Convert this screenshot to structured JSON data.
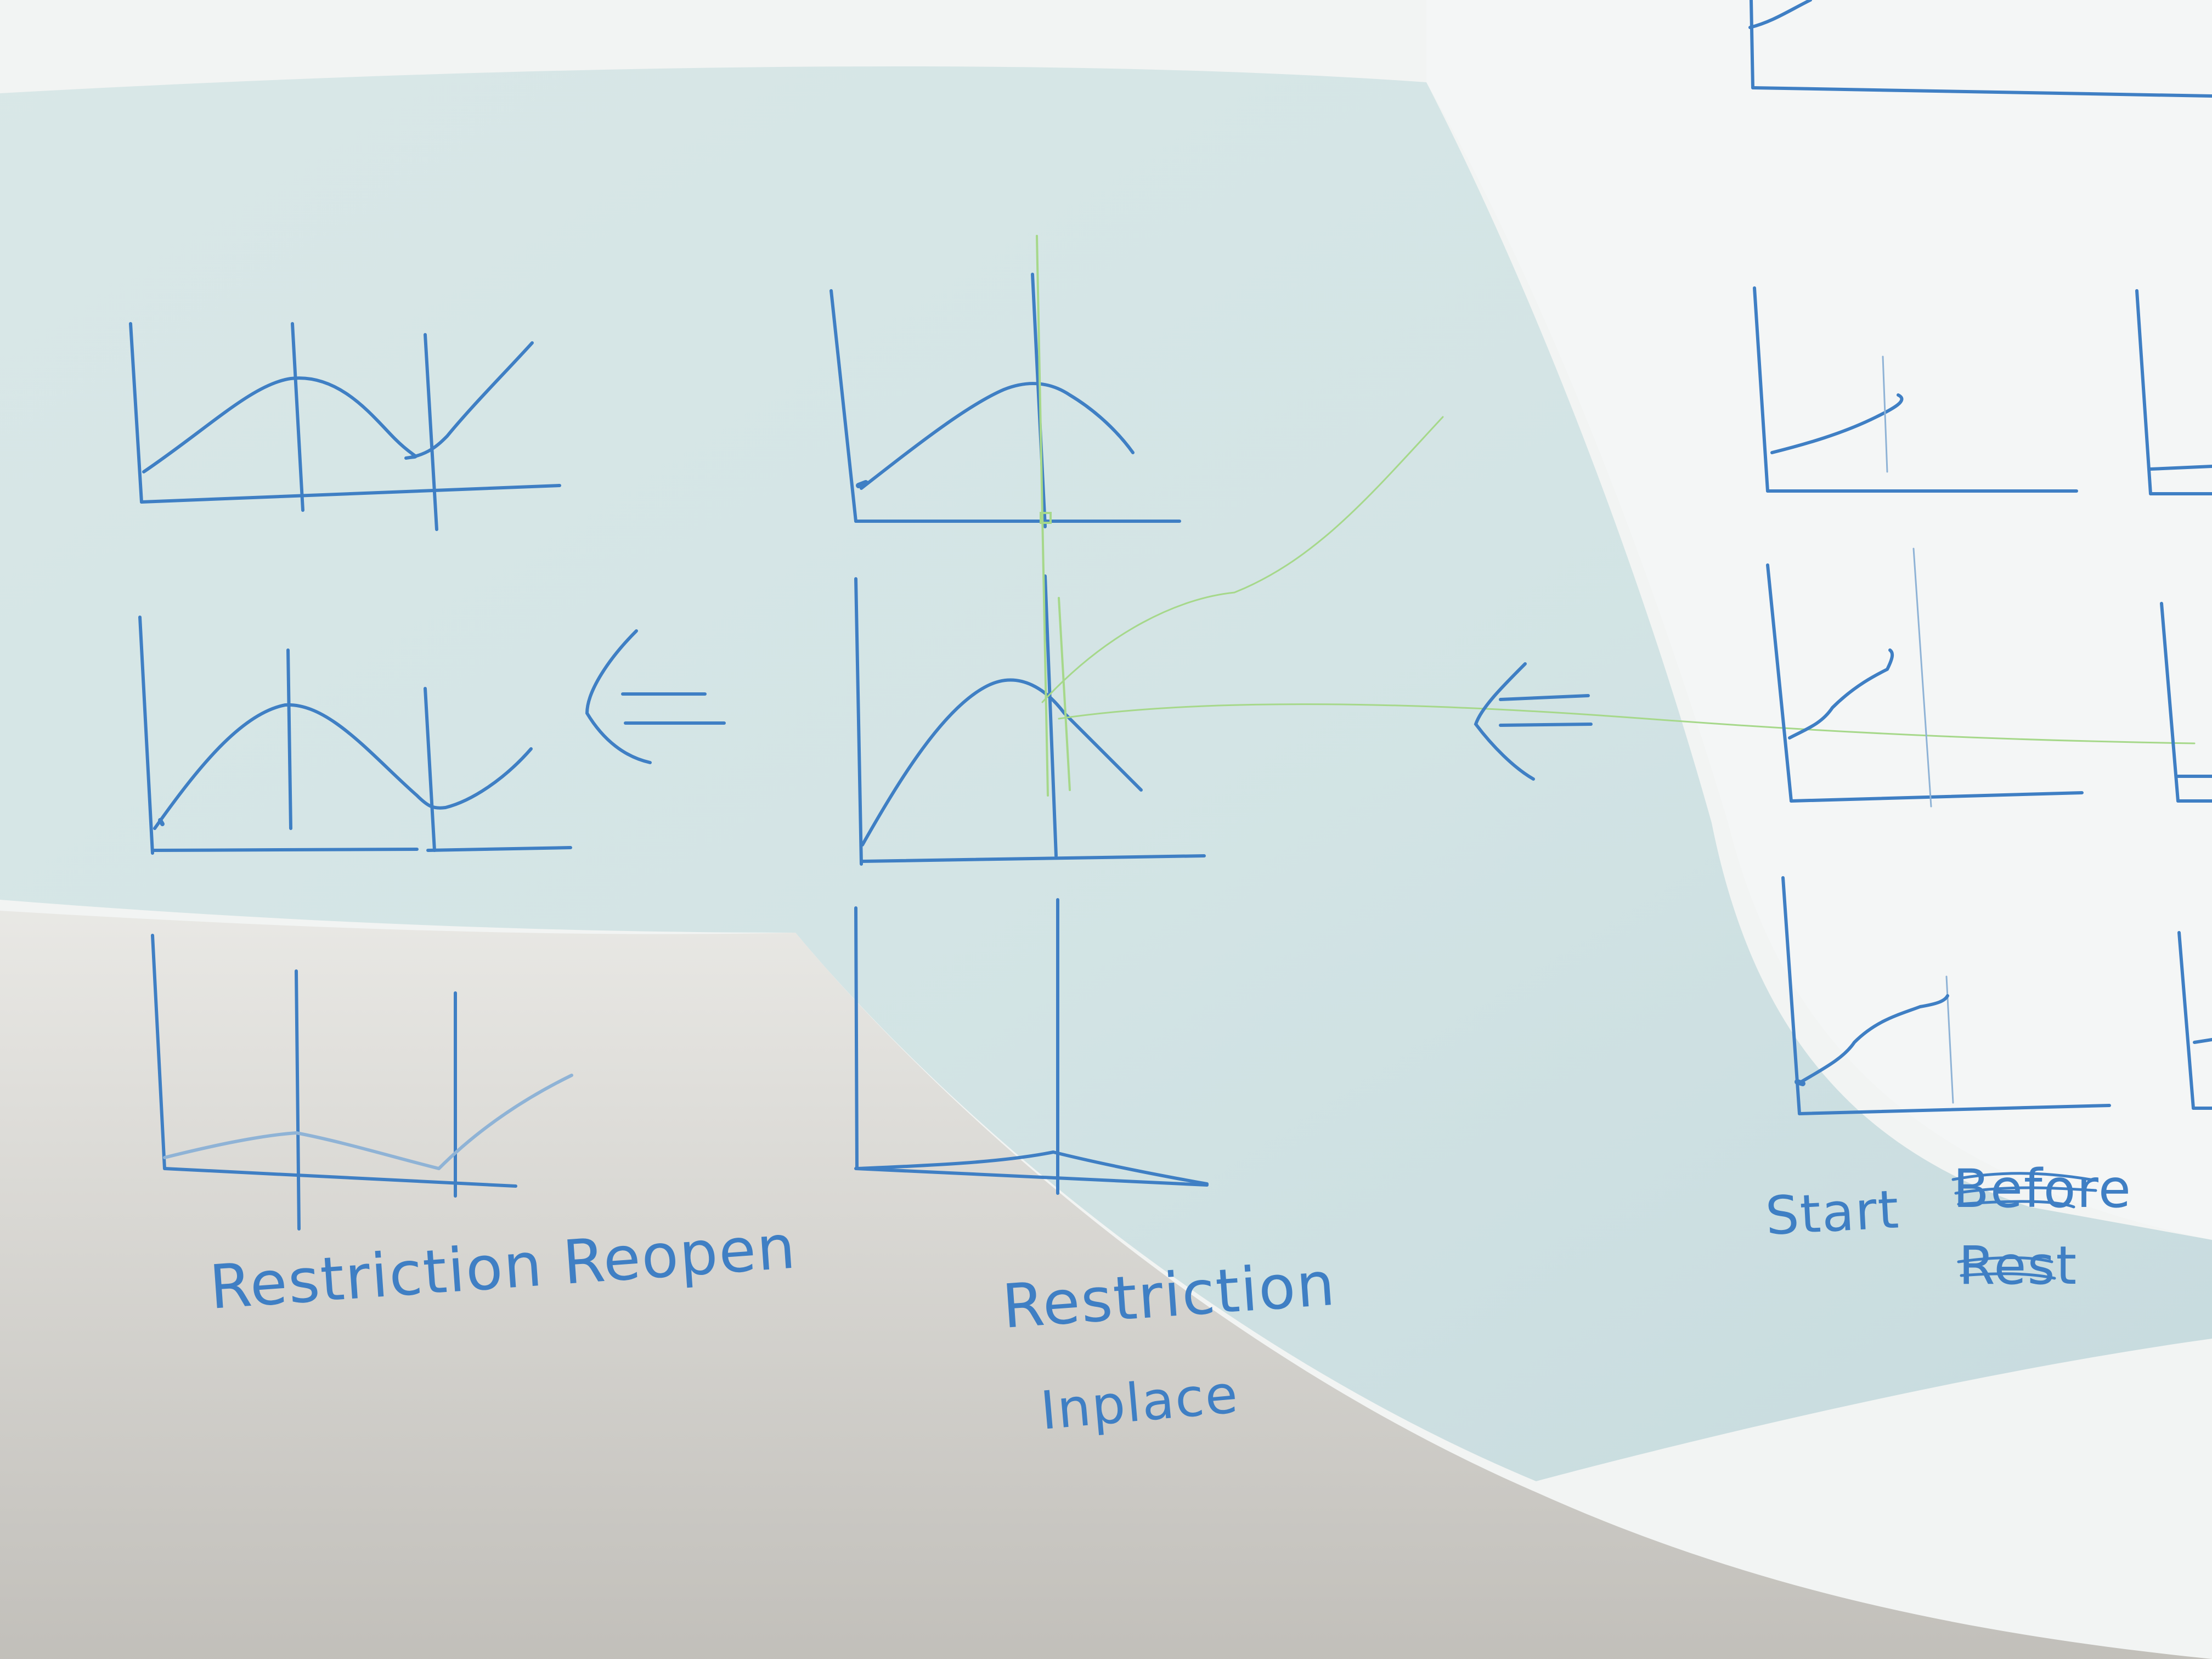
{
  "labels": {
    "restriction_reopen": "Restriction Reopen",
    "restriction": "Restriction",
    "inplace": "Inplace",
    "start": "Start",
    "crossed_1": "Before",
    "crossed_2": "Rest"
  },
  "colors": {
    "paper_light": "#f4f5f4",
    "paper_shadow": "#c9dfe0",
    "paper_dark_bottom": "#bfbcb6",
    "ink_blue": "#3f7fc4",
    "ink_green": "#a6d88a",
    "ink_faint": "#8fb3d6"
  },
  "icons": {
    "arrow_left_1": "double-arrow-left-icon",
    "arrow_left_2": "double-arrow-left-icon"
  }
}
